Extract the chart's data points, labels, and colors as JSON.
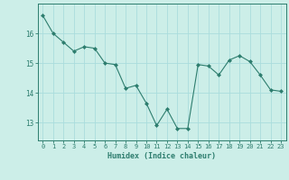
{
  "x": [
    0,
    1,
    2,
    3,
    4,
    5,
    6,
    7,
    8,
    9,
    10,
    11,
    12,
    13,
    14,
    15,
    16,
    17,
    18,
    19,
    20,
    21,
    22,
    23
  ],
  "y": [
    16.6,
    16.0,
    15.7,
    15.4,
    15.55,
    15.5,
    15.0,
    14.95,
    14.15,
    14.25,
    13.65,
    12.9,
    13.45,
    12.8,
    12.8,
    14.95,
    14.9,
    14.6,
    15.1,
    15.25,
    15.05,
    14.6,
    14.1,
    14.05
  ],
  "line_color": "#2d7d6e",
  "marker": "D",
  "marker_size": 2,
  "bg_color": "#cceee8",
  "grid_color": "#aadddd",
  "ylabel_ticks": [
    13,
    14,
    15,
    16
  ],
  "xlabel": "Humidex (Indice chaleur)",
  "ylim": [
    12.4,
    17.0
  ],
  "xlim": [
    -0.5,
    23.5
  ],
  "tick_color": "#2d7d6e",
  "axis_color": "#2d7d6e",
  "font_color": "#2d7d6e",
  "font_family": "monospace",
  "xlabel_fontsize": 6.0,
  "ytick_fontsize": 5.5,
  "xtick_fontsize": 5.0
}
